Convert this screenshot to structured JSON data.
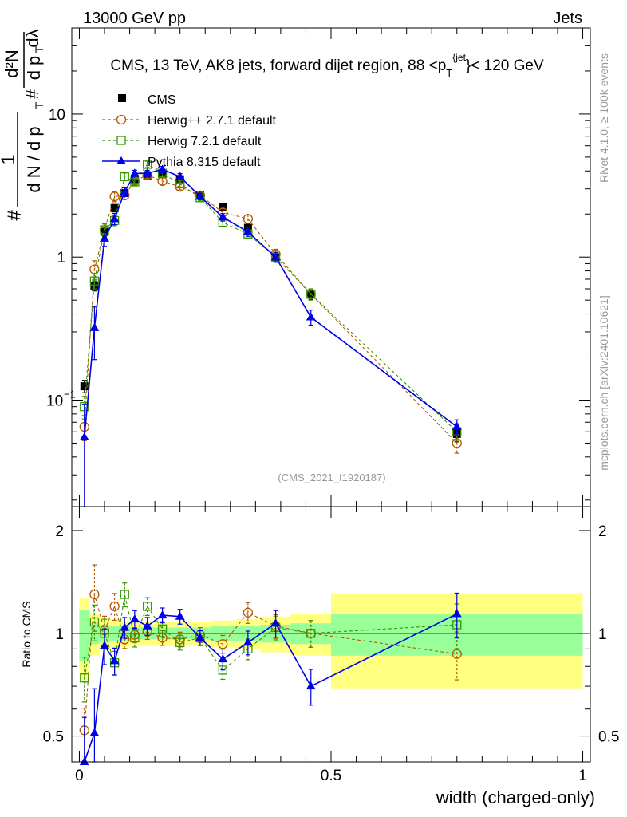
{
  "header": {
    "left": "13000 GeV pp",
    "right": "Jets"
  },
  "side_labels": {
    "rivet": "Rivet 4.1.0, ≥ 100k events",
    "mcplots": "mcplots.cern.ch [arXiv:2401.10621]"
  },
  "colors": {
    "cms": "#000000",
    "herwigpp": "#b35900",
    "herwig7": "#339900",
    "pythia": "#0000e6",
    "band_inner": "#99ff99",
    "band_outer": "#ffff80"
  },
  "chart_data": [
    {
      "type": "line",
      "title": "CMS, 13 TeV, AK8 jets, forward dijet region, 88 <p_T^{jet}< 120 GeV",
      "watermark": "(CMS_2021_I1920187)",
      "ylabel": "1/(dN/dp_T) · d²N/(dp_T dλ)",
      "ylabel_parts": {
        "frac1_num": "1",
        "frac1_den": "d N / d p",
        "sub": "T",
        "hash": "#",
        "frac2_num": "d²N",
        "frac2_den": "d p",
        "frac2_den2": "dλ"
      },
      "yscale": "log",
      "ylim": [
        0.018,
        40
      ],
      "xlim": [
        -0.015,
        1.015
      ],
      "y_ticks": [
        {
          "v": 0.1,
          "base": "10",
          "exp": "−1"
        },
        {
          "v": 1,
          "label": "1"
        },
        {
          "v": 10,
          "label": "10"
        }
      ],
      "legend": [
        "CMS",
        "Herwig++ 2.7.1 default",
        "Herwig 7.2.1 default",
        "Pythia 8.315 default"
      ],
      "series": [
        {
          "name": "CMS",
          "style": "cms",
          "x": [
            0.01,
            0.03,
            0.05,
            0.07,
            0.09,
            0.11,
            0.135,
            0.165,
            0.2,
            0.24,
            0.285,
            0.335,
            0.39,
            0.46,
            0.75
          ],
          "y": [
            0.125,
            0.63,
            1.5,
            2.2,
            2.8,
            3.5,
            3.7,
            3.8,
            3.5,
            2.7,
            2.25,
            1.6,
            1.0,
            0.55,
            0.058
          ],
          "err": [
            0.1,
            0.08,
            0.08,
            0.06,
            0.05,
            0.04,
            0.04,
            0.04,
            0.04,
            0.05,
            0.05,
            0.06,
            0.07,
            0.08,
            0.12
          ]
        },
        {
          "name": "Herwig++ 2.7.1 default",
          "style": "herwigpp",
          "x": [
            0.01,
            0.03,
            0.05,
            0.07,
            0.09,
            0.11,
            0.135,
            0.165,
            0.2,
            0.24,
            0.285,
            0.335,
            0.39,
            0.46,
            0.75
          ],
          "y": [
            0.065,
            0.82,
            1.55,
            2.65,
            2.7,
            3.4,
            3.75,
            3.4,
            3.1,
            2.7,
            2.05,
            1.85,
            1.05,
            0.55,
            0.05
          ],
          "err": [
            0.2,
            0.15,
            0.1,
            0.08,
            0.06,
            0.05,
            0.05,
            0.05,
            0.05,
            0.05,
            0.06,
            0.07,
            0.08,
            0.09,
            0.15
          ]
        },
        {
          "name": "Herwig 7.2.1 default",
          "style": "herwig7",
          "x": [
            0.01,
            0.03,
            0.05,
            0.07,
            0.09,
            0.11,
            0.135,
            0.165,
            0.2,
            0.24,
            0.285,
            0.335,
            0.39,
            0.46,
            0.75
          ],
          "y": [
            0.09,
            0.68,
            1.55,
            1.8,
            3.65,
            3.35,
            4.45,
            3.85,
            3.25,
            2.6,
            1.75,
            1.45,
            1.0,
            0.55,
            0.06
          ],
          "err": [
            0.18,
            0.12,
            0.1,
            0.08,
            0.06,
            0.05,
            0.05,
            0.05,
            0.05,
            0.05,
            0.06,
            0.07,
            0.08,
            0.09,
            0.14
          ]
        },
        {
          "name": "Pythia 8.315 default",
          "style": "pythia",
          "x": [
            0.01,
            0.03,
            0.05,
            0.07,
            0.09,
            0.11,
            0.135,
            0.165,
            0.2,
            0.24,
            0.285,
            0.335,
            0.39,
            0.46,
            0.75
          ],
          "y": [
            0.055,
            0.32,
            1.35,
            1.85,
            2.85,
            3.85,
            3.85,
            4.1,
            3.65,
            2.65,
            1.9,
            1.5,
            1.0,
            0.38,
            0.065
          ],
          "err": [
            0.7,
            0.4,
            0.12,
            0.09,
            0.07,
            0.05,
            0.05,
            0.05,
            0.05,
            0.05,
            0.06,
            0.07,
            0.08,
            0.12,
            0.12
          ]
        }
      ]
    },
    {
      "type": "line",
      "ylabel": "Ratio to CMS",
      "xlabel": "width (charged-only)",
      "yscale": "log",
      "ylim": [
        0.42,
        2.35
      ],
      "xlim": [
        -0.015,
        1.015
      ],
      "y_ticks": [
        {
          "v": 0.5,
          "label": "0.5"
        },
        {
          "v": 1,
          "label": "1"
        },
        {
          "v": 2,
          "label": "2"
        }
      ],
      "x_ticks": [
        {
          "v": 0,
          "label": "0"
        },
        {
          "v": 0.5,
          "label": "0.5"
        },
        {
          "v": 1,
          "label": "1"
        }
      ],
      "bins": [
        {
          "lo": 0.0,
          "hi": 0.02,
          "inner": 0.17,
          "outer": 0.27
        },
        {
          "lo": 0.02,
          "hi": 0.04,
          "inner": 0.07,
          "outer": 0.14
        },
        {
          "lo": 0.04,
          "hi": 0.06,
          "inner": 0.06,
          "outer": 0.11
        },
        {
          "lo": 0.06,
          "hi": 0.08,
          "inner": 0.05,
          "outer": 0.1
        },
        {
          "lo": 0.08,
          "hi": 0.1,
          "inner": 0.05,
          "outer": 0.09
        },
        {
          "lo": 0.1,
          "hi": 0.12,
          "inner": 0.04,
          "outer": 0.08
        },
        {
          "lo": 0.12,
          "hi": 0.15,
          "inner": 0.04,
          "outer": 0.08
        },
        {
          "lo": 0.15,
          "hi": 0.18,
          "inner": 0.04,
          "outer": 0.08
        },
        {
          "lo": 0.18,
          "hi": 0.22,
          "inner": 0.04,
          "outer": 0.08
        },
        {
          "lo": 0.22,
          "hi": 0.26,
          "inner": 0.04,
          "outer": 0.08
        },
        {
          "lo": 0.26,
          "hi": 0.31,
          "inner": 0.05,
          "outer": 0.09
        },
        {
          "lo": 0.31,
          "hi": 0.36,
          "inner": 0.05,
          "outer": 0.1
        },
        {
          "lo": 0.36,
          "hi": 0.42,
          "inner": 0.06,
          "outer": 0.12
        },
        {
          "lo": 0.42,
          "hi": 0.5,
          "inner": 0.07,
          "outer": 0.14
        },
        {
          "lo": 0.5,
          "hi": 1.0,
          "inner": 0.14,
          "outer": 0.31
        }
      ],
      "series": [
        {
          "name": "Herwig++ 2.7.1 default",
          "style": "herwigpp",
          "x": [
            0.01,
            0.03,
            0.05,
            0.07,
            0.09,
            0.11,
            0.135,
            0.165,
            0.2,
            0.24,
            0.285,
            0.335,
            0.39,
            0.46,
            0.75
          ],
          "y": [
            0.52,
            1.3,
            1.02,
            1.2,
            0.96,
            0.99,
            1.01,
            0.97,
            0.96,
            0.99,
            0.93,
            1.15,
            1.05,
            1.0,
            0.87
          ],
          "err": [
            0.16,
            0.22,
            0.1,
            0.09,
            0.06,
            0.05,
            0.05,
            0.05,
            0.05,
            0.05,
            0.06,
            0.07,
            0.08,
            0.09,
            0.16
          ]
        },
        {
          "name": "Herwig 7.2.1 default",
          "style": "herwig7",
          "x": [
            0.01,
            0.03,
            0.05,
            0.07,
            0.09,
            0.11,
            0.135,
            0.165,
            0.2,
            0.24,
            0.285,
            0.335,
            0.39,
            0.46,
            0.75
          ],
          "y": [
            0.74,
            1.08,
            1.0,
            0.82,
            1.3,
            0.97,
            1.2,
            1.03,
            0.94,
            0.97,
            0.78,
            0.9,
            1.04,
            1.0,
            1.06
          ],
          "err": [
            0.15,
            0.12,
            0.1,
            0.08,
            0.08,
            0.06,
            0.06,
            0.05,
            0.05,
            0.05,
            0.06,
            0.07,
            0.08,
            0.09,
            0.15
          ]
        },
        {
          "name": "Pythia 8.315 default",
          "style": "pythia",
          "x": [
            0.01,
            0.03,
            0.05,
            0.07,
            0.09,
            0.11,
            0.135,
            0.165,
            0.2,
            0.24,
            0.285,
            0.335,
            0.39,
            0.46,
            0.75
          ],
          "y": [
            0.42,
            0.51,
            0.92,
            0.83,
            1.04,
            1.1,
            1.05,
            1.13,
            1.12,
            0.97,
            0.84,
            0.94,
            1.07,
            0.7,
            1.14
          ],
          "err": [
            0.35,
            0.35,
            0.12,
            0.09,
            0.07,
            0.06,
            0.06,
            0.05,
            0.05,
            0.05,
            0.07,
            0.08,
            0.09,
            0.12,
            0.15
          ]
        }
      ]
    }
  ]
}
